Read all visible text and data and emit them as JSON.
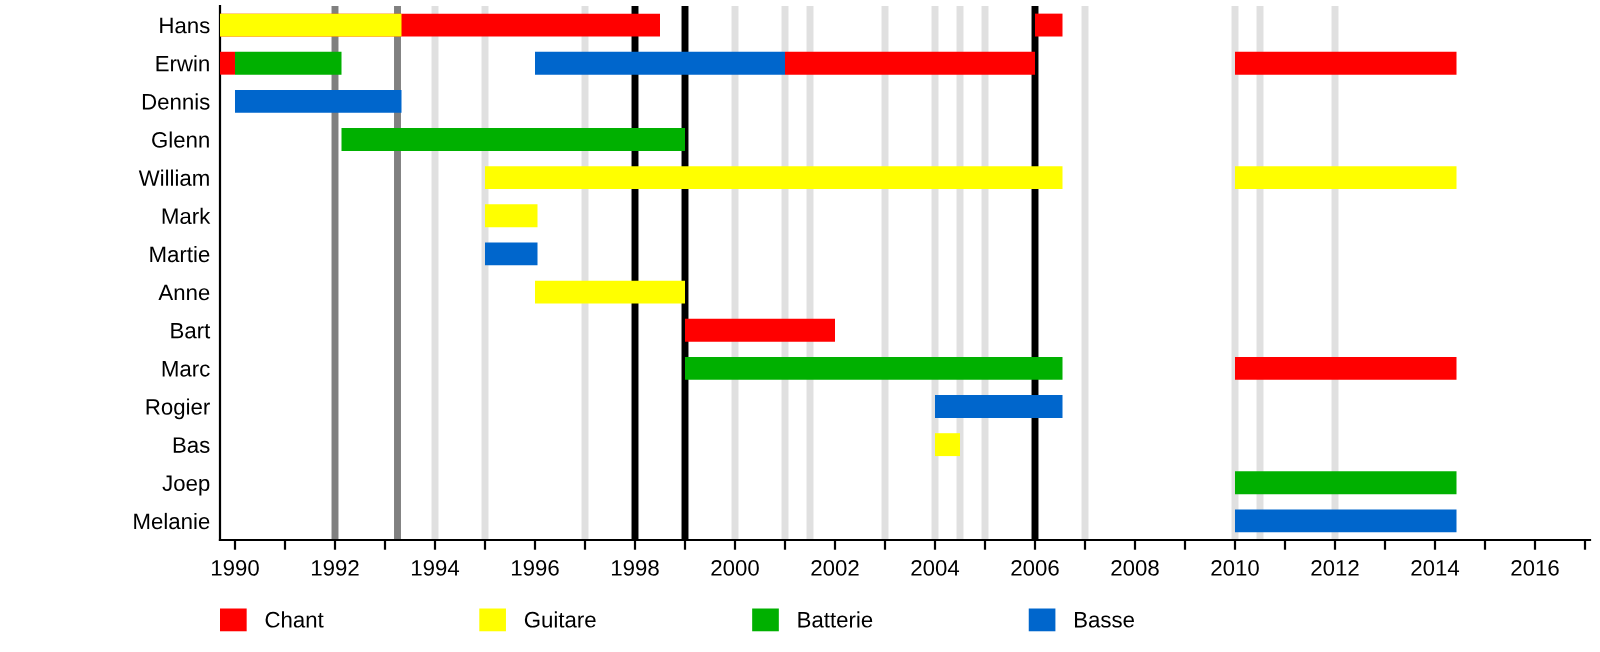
{
  "chart_data": {
    "type": "bar",
    "orientation": "horizontal",
    "categories": [
      "Hans",
      "Erwin",
      "Dennis",
      "Glenn",
      "William",
      "Mark",
      "Martie",
      "Anne",
      "Bart",
      "Marc",
      "Rogier",
      "Bas",
      "Joep",
      "Melanie"
    ],
    "series": [
      {
        "name": "Chant",
        "color": "#ff0000",
        "base": [
          1989.7,
          1989.7,
          null,
          null,
          null,
          null,
          null,
          null,
          1999,
          2010,
          null,
          null,
          null,
          null
        ],
        "values": [
          8.8,
          0.3,
          null,
          null,
          null,
          null,
          null,
          null,
          3,
          4.43,
          null,
          null,
          null,
          null
        ]
      },
      {
        "color": "#ff0000",
        "base": [
          2006,
          2001,
          null,
          null,
          null,
          null,
          null,
          null,
          null,
          null,
          null,
          null,
          null,
          null
        ],
        "values": [
          0.55,
          5,
          null,
          null,
          null,
          null,
          null,
          null,
          null,
          null,
          null,
          null,
          null,
          null
        ]
      },
      {
        "color": "#ff0000",
        "base": [
          null,
          2010,
          null,
          null,
          null,
          null,
          null,
          null,
          null,
          null,
          null,
          null,
          null,
          null
        ],
        "values": [
          null,
          4.43,
          null,
          null,
          null,
          null,
          null,
          null,
          null,
          null,
          null,
          null,
          null,
          null
        ]
      },
      {
        "name": "Guitare",
        "color": "#ffff00",
        "base": [
          1989.7,
          null,
          null,
          null,
          1995,
          1995,
          null,
          1996,
          null,
          null,
          null,
          2004,
          null,
          null
        ],
        "values": [
          3.63,
          null,
          null,
          null,
          11.55,
          1.05,
          null,
          3,
          null,
          null,
          null,
          0.5,
          null,
          null
        ]
      },
      {
        "color": "#ffff00",
        "base": [
          null,
          null,
          null,
          null,
          2010,
          null,
          null,
          null,
          null,
          null,
          null,
          null,
          null,
          null
        ],
        "values": [
          null,
          null,
          null,
          null,
          4.43,
          null,
          null,
          null,
          null,
          null,
          null,
          null,
          null,
          null
        ]
      },
      {
        "name": "Batterie",
        "color": "#00b000",
        "base": [
          null,
          1990,
          null,
          1992.13,
          null,
          null,
          null,
          null,
          null,
          1999,
          null,
          null,
          2010,
          null
        ],
        "values": [
          null,
          2.13,
          null,
          6.87,
          null,
          null,
          null,
          null,
          null,
          7.55,
          null,
          null,
          4.43,
          null
        ]
      },
      {
        "name": "Basse",
        "color": "#0066cc",
        "base": [
          null,
          1996,
          1990,
          null,
          null,
          null,
          1995,
          null,
          null,
          null,
          2004,
          null,
          null,
          2010
        ],
        "values": [
          null,
          5,
          3.33,
          null,
          null,
          null,
          1.05,
          null,
          null,
          null,
          2.55,
          null,
          null,
          4.43
        ]
      }
    ],
    "xlim": [
      1989.7,
      2017.1
    ],
    "xticks": [
      1990,
      {
        "value": 1991,
        "label": null
      },
      1992,
      {
        "value": 1993,
        "label": null
      },
      1994,
      {
        "value": 1995,
        "label": null
      },
      1996,
      {
        "value": 1997,
        "label": null
      },
      1998,
      {
        "value": 1999,
        "label": null
      },
      2000,
      {
        "value": 2001,
        "label": null
      },
      2002,
      {
        "value": 2003,
        "label": null
      },
      2004,
      {
        "value": 2005,
        "label": null
      },
      2006,
      {
        "value": 2007,
        "label": null
      },
      2008,
      {
        "value": 2009,
        "label": null
      },
      2010,
      {
        "value": 2011,
        "label": null
      },
      2012,
      {
        "value": 2013,
        "label": null
      },
      2014,
      {
        "value": 2015,
        "label": null
      },
      2016,
      {
        "value": 2017,
        "label": null
      }
    ],
    "ref_lines": [
      {
        "axis": "x",
        "value": 1994,
        "color": "#e0e0e0"
      },
      {
        "axis": "x",
        "value": 1995,
        "color": "#e0e0e0"
      },
      {
        "axis": "x",
        "value": 1997,
        "color": "#e0e0e0"
      },
      {
        "axis": "x",
        "value": 2000,
        "color": "#e0e0e0"
      },
      {
        "axis": "x",
        "value": 2001,
        "color": "#e0e0e0"
      },
      {
        "axis": "x",
        "value": 2001.5,
        "color": "#e0e0e0"
      },
      {
        "axis": "x",
        "value": 2003,
        "color": "#e0e0e0"
      },
      {
        "axis": "x",
        "value": 2004,
        "color": "#e0e0e0"
      },
      {
        "axis": "x",
        "value": 2004.5,
        "color": "#e0e0e0"
      },
      {
        "axis": "x",
        "value": 2005,
        "color": "#e0e0e0"
      },
      {
        "axis": "x",
        "value": 2007,
        "color": "#e0e0e0"
      },
      {
        "axis": "x",
        "value": 2010,
        "color": "#e0e0e0"
      },
      {
        "axis": "x",
        "value": 2010.5,
        "color": "#e0e0e0"
      },
      {
        "axis": "x",
        "value": 2012,
        "color": "#e0e0e0"
      },
      {
        "axis": "x",
        "value": 1992,
        "color": "#808080"
      },
      {
        "axis": "x",
        "value": 1993.25,
        "color": "#808080"
      },
      {
        "axis": "x",
        "value": 1998,
        "color": "#000000"
      },
      {
        "axis": "x",
        "value": 1999,
        "color": "#000000"
      },
      {
        "axis": "x",
        "value": 2006,
        "color": "#000000"
      }
    ],
    "grid": false,
    "legend": "bottom"
  }
}
